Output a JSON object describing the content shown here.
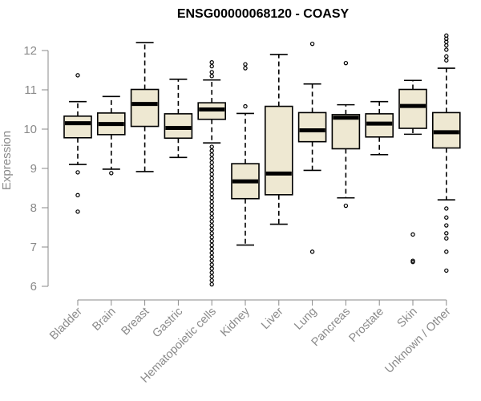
{
  "chart_data": {
    "type": "boxplot",
    "title": "ENSG00000068120 - COASY",
    "ylabel": "Expression",
    "ylim": [
      6,
      12.5
    ],
    "yticks": [
      6,
      7,
      8,
      9,
      10,
      11,
      12
    ],
    "box_fill": "#eee8d2",
    "grid": false,
    "categories": [
      "Bladder",
      "Brain",
      "Breast",
      "Gastric",
      "Hematopoietic cells",
      "Kidney",
      "Liver",
      "Lung",
      "Pancreas",
      "Prostate",
      "Skin",
      "Unknown / Other"
    ],
    "boxes": [
      {
        "category": "Bladder",
        "whisker_low": 9.1,
        "q1": 9.78,
        "median": 10.15,
        "q3": 10.33,
        "whisker_high": 10.7,
        "outliers": [
          11.37,
          8.9,
          8.32,
          7.9
        ]
      },
      {
        "category": "Brain",
        "whisker_low": 8.98,
        "q1": 9.86,
        "median": 10.13,
        "q3": 10.41,
        "whisker_high": 10.83,
        "outliers": [
          8.88
        ]
      },
      {
        "category": "Breast",
        "whisker_low": 8.92,
        "q1": 10.07,
        "median": 10.64,
        "q3": 11.01,
        "whisker_high": 12.2,
        "outliers": []
      },
      {
        "category": "Gastric",
        "whisker_low": 9.28,
        "q1": 9.77,
        "median": 10.03,
        "q3": 10.39,
        "whisker_high": 11.27,
        "outliers": []
      },
      {
        "category": "Hematopoietic cells",
        "whisker_low": 9.65,
        "q1": 10.25,
        "median": 10.5,
        "q3": 10.67,
        "whisker_high": 11.25,
        "outliers": [
          11.7,
          11.6,
          11.45,
          11.35,
          9.55,
          9.45,
          9.35,
          9.25,
          9.15,
          9.05,
          8.95,
          8.85,
          8.75,
          8.65,
          8.55,
          8.45,
          8.35,
          8.25,
          8.15,
          8.05,
          7.95,
          7.85,
          7.75,
          7.65,
          7.55,
          7.45,
          7.35,
          7.25,
          7.15,
          7.05,
          6.95,
          6.85,
          6.75,
          6.65,
          6.55,
          6.45,
          6.35,
          6.25,
          6.15,
          6.05
        ]
      },
      {
        "category": "Kidney",
        "whisker_low": 7.05,
        "q1": 8.23,
        "median": 8.67,
        "q3": 9.12,
        "whisker_high": 10.4,
        "outliers": [
          11.65,
          11.55,
          10.58
        ]
      },
      {
        "category": "Liver",
        "whisker_low": 7.58,
        "q1": 8.33,
        "median": 8.87,
        "q3": 10.58,
        "whisker_high": 11.9,
        "outliers": []
      },
      {
        "category": "Lung",
        "whisker_low": 8.95,
        "q1": 9.68,
        "median": 9.97,
        "q3": 10.42,
        "whisker_high": 11.15,
        "outliers": [
          12.17,
          6.88
        ]
      },
      {
        "category": "Pancreas",
        "whisker_low": 8.25,
        "q1": 9.5,
        "median": 10.29,
        "q3": 10.37,
        "whisker_high": 10.62,
        "outliers": [
          11.68,
          8.05
        ]
      },
      {
        "category": "Prostate",
        "whisker_low": 9.35,
        "q1": 9.8,
        "median": 10.14,
        "q3": 10.39,
        "whisker_high": 10.7,
        "outliers": []
      },
      {
        "category": "Skin",
        "whisker_low": 9.87,
        "q1": 10.02,
        "median": 10.59,
        "q3": 11.01,
        "whisker_high": 11.24,
        "outliers": [
          7.32,
          6.65,
          6.62
        ]
      },
      {
        "category": "Unknown / Other",
        "whisker_low": 8.2,
        "q1": 9.52,
        "median": 9.92,
        "q3": 10.42,
        "whisker_high": 11.55,
        "outliers": [
          12.38,
          12.3,
          12.22,
          12.13,
          12.02,
          11.85,
          11.75,
          7.98,
          7.75,
          7.55,
          7.35,
          7.22,
          6.88,
          6.4
        ]
      }
    ]
  }
}
